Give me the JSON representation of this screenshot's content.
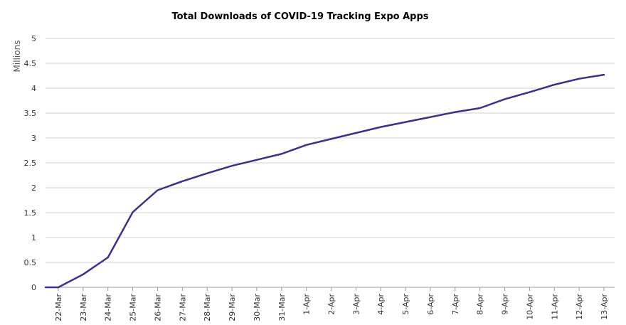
{
  "chart_data": {
    "type": "line",
    "title": "Total Downloads of COVID-19 Tracking Expo Apps",
    "xlabel": "",
    "ylabel": "Millions",
    "ylim": [
      0,
      5
    ],
    "yticks": [
      "0",
      "0.5",
      "1",
      "1.5",
      "2",
      "2.5",
      "3",
      "3.5",
      "4",
      "4.5",
      "5"
    ],
    "grid": true,
    "legend": "none",
    "line_color": "#3b2f8f",
    "categories": [
      "22-Mar",
      "23-Mar",
      "24-Mar",
      "25-Mar",
      "26-Mar",
      "27-Mar",
      "28-Mar",
      "29-Mar",
      "30-Mar",
      "31-Mar",
      "1-Apr",
      "2-Apr",
      "3-Apr",
      "4-Apr",
      "5-Apr",
      "6-Apr",
      "7-Apr",
      "8-Apr",
      "9-Apr",
      "10-Apr",
      "11-Apr",
      "12-Apr",
      "13-Apr"
    ],
    "series": [
      {
        "values": [
          0.0,
          0.26,
          0.6,
          1.51,
          1.95,
          2.13,
          2.29,
          2.44,
          2.56,
          2.68,
          2.86,
          2.98,
          3.1,
          3.22,
          3.32,
          3.42,
          3.52,
          3.6,
          3.78,
          3.92,
          4.07,
          4.19,
          4.27
        ]
      }
    ]
  }
}
